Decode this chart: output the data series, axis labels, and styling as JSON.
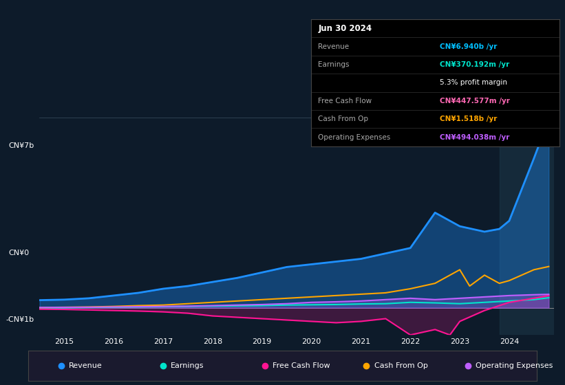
{
  "bg_color": "#0d1b2a",
  "plot_bg_color": "#0d1b2a",
  "highlight_bg": "#1a2a3a",
  "title_text": "Jun 30 2024",
  "table_data": {
    "Revenue": {
      "value": "CN¥6.940b /yr",
      "color": "#00bfff"
    },
    "Earnings": {
      "value": "CN¥370.192m /yr",
      "color": "#00e5cc"
    },
    "profit_margin": {
      "value": "5.3% profit margin",
      "color": "#ffffff"
    },
    "Free Cash Flow": {
      "value": "CN¥447.577m /yr",
      "color": "#ff69b4"
    },
    "Cash From Op": {
      "value": "CN¥1.518b /yr",
      "color": "#ffa500"
    },
    "Operating Expenses": {
      "value": "CN¥494.038m /yr",
      "color": "#bf5fff"
    }
  },
  "ylim": [
    -1000000000.0,
    7500000000.0
  ],
  "yticks": [
    0,
    7000000000.0
  ],
  "ytick_labels": [
    "CN¥0",
    "CN¥7b"
  ],
  "ylabel_neg": "-CN¥1b",
  "xlim_start": 2014.5,
  "xlim_end": 2024.9,
  "xtick_years": [
    2015,
    2016,
    2017,
    2018,
    2019,
    2020,
    2021,
    2022,
    2023,
    2024
  ],
  "series": {
    "Revenue": {
      "color": "#1e90ff",
      "fill": true,
      "fill_alpha": 0.35,
      "lw": 2.0,
      "x": [
        2014.5,
        2015.0,
        2015.5,
        2016.0,
        2016.5,
        2017.0,
        2017.5,
        2018.0,
        2018.5,
        2019.0,
        2019.5,
        2020.0,
        2020.5,
        2021.0,
        2021.5,
        2022.0,
        2022.5,
        2023.0,
        2023.5,
        2023.8,
        2024.0,
        2024.5,
        2024.8
      ],
      "y": [
        280000000.0,
        300000000.0,
        350000000.0,
        450000000.0,
        550000000.0,
        700000000.0,
        800000000.0,
        950000000.0,
        1100000000.0,
        1300000000.0,
        1500000000.0,
        1600000000.0,
        1700000000.0,
        1800000000.0,
        2000000000.0,
        2200000000.0,
        3500000000.0,
        3000000000.0,
        2800000000.0,
        2900000000.0,
        3200000000.0,
        5500000000.0,
        6940000000.0
      ]
    },
    "Earnings": {
      "color": "#00e5cc",
      "fill": false,
      "lw": 1.5,
      "x": [
        2014.5,
        2015.0,
        2015.5,
        2016.0,
        2016.5,
        2017.0,
        2017.5,
        2018.0,
        2018.5,
        2019.0,
        2019.5,
        2020.0,
        2020.5,
        2021.0,
        2021.5,
        2022.0,
        2022.5,
        2023.0,
        2023.5,
        2024.0,
        2024.5,
        2024.8
      ],
      "y": [
        -20000000.0,
        0,
        10000000.0,
        20000000.0,
        30000000.0,
        40000000.0,
        50000000.0,
        60000000.0,
        70000000.0,
        80000000.0,
        100000000.0,
        110000000.0,
        120000000.0,
        140000000.0,
        150000000.0,
        200000000.0,
        180000000.0,
        150000000.0,
        200000000.0,
        250000000.0,
        300000000.0,
        370000000.0
      ]
    },
    "Free Cash Flow": {
      "color": "#ff1493",
      "fill": true,
      "fill_alpha": 0.2,
      "lw": 1.5,
      "x": [
        2014.5,
        2015.0,
        2015.5,
        2016.0,
        2016.5,
        2017.0,
        2017.5,
        2018.0,
        2018.5,
        2019.0,
        2019.5,
        2020.0,
        2020.5,
        2021.0,
        2021.5,
        2022.0,
        2022.5,
        2022.8,
        2023.0,
        2023.5,
        2024.0,
        2024.5,
        2024.8
      ],
      "y": [
        -50000000.0,
        -60000000.0,
        -80000000.0,
        -100000000.0,
        -120000000.0,
        -150000000.0,
        -200000000.0,
        -300000000.0,
        -350000000.0,
        -400000000.0,
        -450000000.0,
        -500000000.0,
        -550000000.0,
        -500000000.0,
        -400000000.0,
        -1000000000.0,
        -800000000.0,
        -1000000000.0,
        -500000000.0,
        -100000000.0,
        200000000.0,
        350000000.0,
        450000000.0
      ]
    },
    "Cash From Op": {
      "color": "#ffa500",
      "fill": false,
      "lw": 1.5,
      "x": [
        2014.5,
        2015.0,
        2015.5,
        2016.0,
        2016.5,
        2017.0,
        2017.5,
        2018.0,
        2018.5,
        2019.0,
        2019.5,
        2020.0,
        2020.5,
        2021.0,
        2021.5,
        2022.0,
        2022.5,
        2023.0,
        2023.2,
        2023.5,
        2023.8,
        2024.0,
        2024.5,
        2024.8
      ],
      "y": [
        10000000.0,
        20000000.0,
        30000000.0,
        50000000.0,
        80000000.0,
        100000000.0,
        150000000.0,
        200000000.0,
        250000000.0,
        300000000.0,
        350000000.0,
        400000000.0,
        450000000.0,
        500000000.0,
        550000000.0,
        700000000.0,
        900000000.0,
        1400000000.0,
        800000000.0,
        1200000000.0,
        900000000.0,
        1000000000.0,
        1400000000.0,
        1518000000.0
      ]
    },
    "Operating Expenses": {
      "color": "#bf5fff",
      "fill": true,
      "fill_alpha": 0.25,
      "lw": 1.5,
      "x": [
        2014.5,
        2015.0,
        2015.5,
        2016.0,
        2016.5,
        2017.0,
        2017.5,
        2018.0,
        2018.5,
        2019.0,
        2019.5,
        2020.0,
        2020.5,
        2021.0,
        2021.5,
        2022.0,
        2022.5,
        2023.0,
        2023.5,
        2024.0,
        2024.5,
        2024.8
      ],
      "y": [
        10000000.0,
        15000000.0,
        20000000.0,
        30000000.0,
        40000000.0,
        50000000.0,
        60000000.0,
        80000000.0,
        100000000.0,
        120000000.0,
        150000000.0,
        200000000.0,
        220000000.0,
        250000000.0,
        300000000.0,
        350000000.0,
        300000000.0,
        350000000.0,
        400000000.0,
        450000000.0,
        480000000.0,
        494000000.0
      ]
    }
  },
  "legend_entries": [
    {
      "label": "Revenue",
      "color": "#1e90ff"
    },
    {
      "label": "Earnings",
      "color": "#00e5cc"
    },
    {
      "label": "Free Cash Flow",
      "color": "#ff1493"
    },
    {
      "label": "Cash From Op",
      "color": "#ffa500"
    },
    {
      "label": "Operating Expenses",
      "color": "#bf5fff"
    }
  ]
}
